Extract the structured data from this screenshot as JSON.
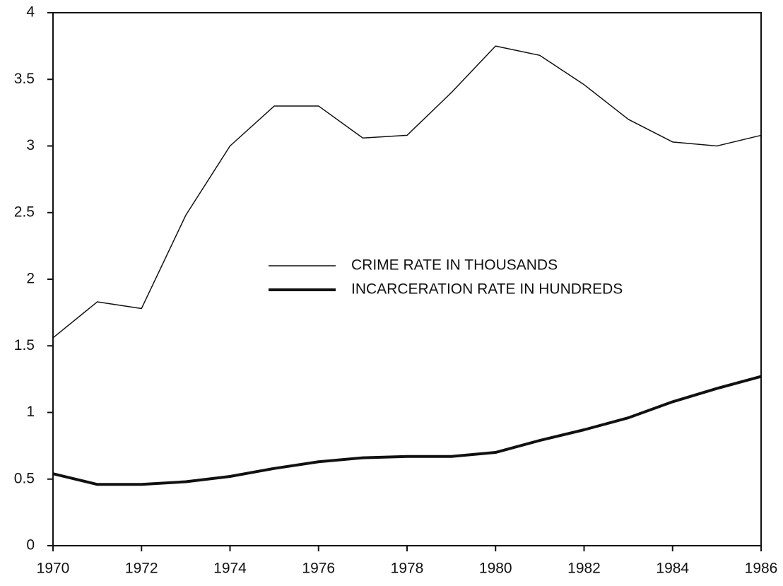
{
  "chart_data": {
    "type": "line",
    "x": [
      1970,
      1971,
      1972,
      1973,
      1974,
      1975,
      1976,
      1977,
      1978,
      1979,
      1980,
      1981,
      1982,
      1983,
      1984,
      1985,
      1986
    ],
    "series": [
      {
        "name": "CRIME RATE IN THOUSANDS",
        "color": "#111111",
        "line_width": 1.5,
        "values": [
          1.56,
          1.83,
          1.78,
          2.48,
          3.0,
          3.3,
          3.3,
          3.06,
          3.08,
          3.4,
          3.75,
          3.68,
          3.46,
          3.2,
          3.03,
          3.0,
          3.08
        ]
      },
      {
        "name": "INCARCERATION RATE IN HUNDREDS",
        "color": "#111111",
        "line_width": 4,
        "values": [
          0.54,
          0.46,
          0.46,
          0.48,
          0.52,
          0.58,
          0.63,
          0.66,
          0.67,
          0.67,
          0.7,
          0.79,
          0.87,
          0.96,
          1.08,
          1.18,
          1.27
        ]
      }
    ],
    "xlim": [
      1970,
      1986
    ],
    "xticks": [
      1970,
      1972,
      1974,
      1976,
      1978,
      1980,
      1982,
      1984,
      1986
    ],
    "ylim": [
      0,
      4
    ],
    "yticks": [
      0,
      0.5,
      1,
      1.5,
      2,
      2.5,
      3,
      3.5,
      4
    ],
    "grid": false,
    "legend": "center"
  }
}
